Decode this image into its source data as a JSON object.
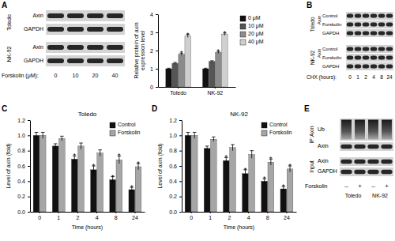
{
  "chart_data": [
    {
      "type": "bar",
      "y_label": [
        "Relative protein of axin",
        "expression level"
      ],
      "categories": [
        "Toledo",
        "NK-92"
      ],
      "series": [
        {
          "name": "0 μM",
          "color": "#111111",
          "values": [
            1.0,
            1.0
          ],
          "errors": [
            0.03,
            0.03
          ]
        },
        {
          "name": "10 μM",
          "color": "#555555",
          "values": [
            1.3,
            1.4
          ],
          "errors": [
            0.05,
            0.04
          ]
        },
        {
          "name": "20 μM",
          "color": "#8c8c8c",
          "values": [
            1.8,
            1.9
          ],
          "errors": [
            0.06,
            0.05
          ]
        },
        {
          "name": "40 μM",
          "color": "#cfcfcf",
          "values": [
            2.8,
            2.9
          ],
          "errors": [
            0.08,
            0.06
          ]
        }
      ],
      "ylim": [
        0,
        4
      ],
      "yticks": [
        0,
        1,
        2,
        3,
        4
      ],
      "grid": false,
      "legend": "right",
      "annotations": [
        {
          "text": "*",
          "series": 2,
          "category": 0
        },
        {
          "text": "*",
          "series": 3,
          "category": 0
        },
        {
          "text": "*",
          "series": 2,
          "category": 1
        },
        {
          "text": "*",
          "series": 3,
          "category": 1
        }
      ]
    },
    {
      "type": "bar",
      "title": "Toledo",
      "x_label": "Time (hours)",
      "y_label": "Level of axin (fold)",
      "categories": [
        "0",
        "1",
        "2",
        "4",
        "8",
        "24"
      ],
      "series": [
        {
          "name": "Control",
          "color": "#111111",
          "values": [
            1.0,
            0.86,
            0.69,
            0.55,
            0.42,
            0.29
          ],
          "errors": [
            0.04,
            0.03,
            0.04,
            0.05,
            0.04,
            0.03
          ]
        },
        {
          "name": "Forskolin",
          "color": "#a6a6a6",
          "values": [
            1.0,
            0.96,
            0.86,
            0.77,
            0.68,
            0.59
          ],
          "errors": [
            0.04,
            0.03,
            0.04,
            0.04,
            0.05,
            0.04
          ]
        }
      ],
      "ylim": [
        0,
        1.2
      ],
      "yticks": [
        {
          "value": 0,
          "label": "0.0"
        },
        0.2,
        0.4,
        0.6,
        0.8,
        {
          "value": 1,
          "label": "1.0"
        },
        1.2
      ],
      "grid": false,
      "legend": "upper right",
      "annotations": [
        {
          "text": "*",
          "series": 0,
          "category": 2
        },
        {
          "text": "*",
          "series": 0,
          "category": 3
        },
        {
          "text": "*",
          "series": 0,
          "category": 4
        },
        {
          "text": "*",
          "series": 0,
          "category": 5
        },
        {
          "text": "*",
          "series": 1,
          "category": 4
        },
        {
          "text": "*",
          "series": 1,
          "category": 5
        }
      ]
    },
    {
      "type": "bar",
      "title": "NK-92",
      "x_label": "Time (hours)",
      "y_label": "Level of axin (fold)",
      "categories": [
        "0",
        "1",
        "2",
        "4",
        "8",
        "24"
      ],
      "series": [
        {
          "name": "Control",
          "color": "#111111",
          "values": [
            1.0,
            0.83,
            0.67,
            0.5,
            0.4,
            0.3
          ],
          "errors": [
            0.04,
            0.03,
            0.04,
            0.05,
            0.03,
            0.03
          ]
        },
        {
          "name": "Forskolin",
          "color": "#a6a6a6",
          "values": [
            1.0,
            0.95,
            0.84,
            0.75,
            0.65,
            0.56
          ],
          "errors": [
            0.04,
            0.03,
            0.04,
            0.05,
            0.04,
            0.04
          ]
        }
      ],
      "ylim": [
        0,
        1.2
      ],
      "yticks": [
        {
          "value": 0,
          "label": "0.0"
        },
        0.2,
        0.4,
        0.6,
        0.8,
        {
          "value": 1,
          "label": "1.0"
        },
        1.2
      ],
      "grid": false,
      "legend": "upper right",
      "annotations": [
        {
          "text": "*",
          "series": 0,
          "category": 2
        },
        {
          "text": "*",
          "series": 0,
          "category": 3
        },
        {
          "text": "*",
          "series": 0,
          "category": 4
        },
        {
          "text": "*",
          "series": 0,
          "category": 5
        },
        {
          "text": "*",
          "series": 1,
          "category": 4
        },
        {
          "text": "*",
          "series": 1,
          "category": 5
        }
      ]
    }
  ],
  "panels": [
    "A",
    "B",
    "C",
    "D",
    "E"
  ],
  "blots": [
    {
      "groups": [
        {
          "label": "Toledo",
          "rows": [
            "Axin",
            "GAPDH"
          ]
        },
        {
          "label": "NK-92",
          "rows": [
            "Axin",
            "GAPDH"
          ]
        }
      ],
      "lanes_title": "Forskolin (μM):",
      "lanes": [
        "0",
        "10",
        "20",
        "40"
      ]
    },
    {
      "groups": [
        {
          "label": "Toledo",
          "rows": [
            {
              "label": "Axin",
              "subrows": [
                "Control",
                "Forskolin"
              ]
            },
            {
              "label": "GAPDH"
            }
          ]
        },
        {
          "label": "NK-92",
          "rows": [
            {
              "label": "Axin",
              "subrows": [
                "Control",
                "Forskolin"
              ]
            },
            {
              "label": "GAPDH"
            }
          ]
        }
      ],
      "lanes_title": "CHX (hours):",
      "lanes": [
        "0",
        "1",
        "2",
        "4",
        "8",
        "24"
      ]
    },
    {
      "groups": [
        {
          "label": "IP:Axin",
          "rows": [
            "Ub",
            "Axin"
          ]
        },
        {
          "label": "Input",
          "rows": [
            "Axin",
            "GAPDH"
          ]
        }
      ],
      "lanes_title": "Forskolin",
      "lanes": [
        "–",
        "+",
        "–",
        "+"
      ],
      "lane_groups": [
        "Toledo",
        "NK-92"
      ]
    }
  ]
}
